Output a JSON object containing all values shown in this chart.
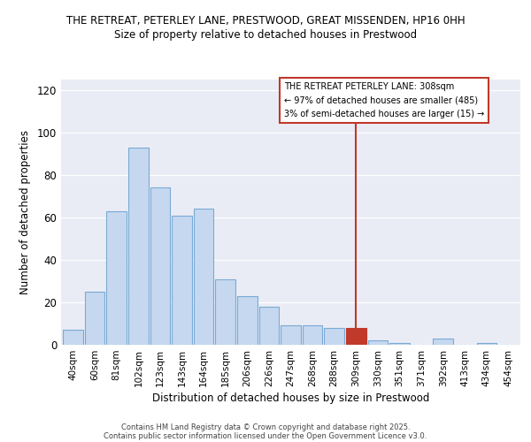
{
  "title_line1": "THE RETREAT, PETERLEY LANE, PRESTWOOD, GREAT MISSENDEN, HP16 0HH",
  "title_line2": "Size of property relative to detached houses in Prestwood",
  "xlabel": "Distribution of detached houses by size in Prestwood",
  "ylabel": "Number of detached properties",
  "categories": [
    "40sqm",
    "60sqm",
    "81sqm",
    "102sqm",
    "123sqm",
    "143sqm",
    "164sqm",
    "185sqm",
    "206sqm",
    "226sqm",
    "247sqm",
    "268sqm",
    "288sqm",
    "309sqm",
    "330sqm",
    "351sqm",
    "371sqm",
    "392sqm",
    "413sqm",
    "434sqm",
    "454sqm"
  ],
  "values": [
    7,
    25,
    63,
    93,
    74,
    61,
    64,
    31,
    23,
    18,
    9,
    9,
    8,
    8,
    2,
    1,
    0,
    3,
    0,
    1,
    0
  ],
  "highlight_index": 13,
  "bar_color_normal_face": "#c5d8f0",
  "bar_color_normal_edge": "#7aaad4",
  "bar_color_highlight_face": "#c0392b",
  "bar_color_highlight_edge": "#c0392b",
  "background_color": "#eaecf5",
  "annotation_text_line1": "THE RETREAT PETERLEY LANE: 308sqm",
  "annotation_text_line2": "← 97% of detached houses are smaller (485)",
  "annotation_text_line3": "3% of semi-detached houses are larger (15) →",
  "annotation_border_color": "#c0392b",
  "ylim": [
    0,
    125
  ],
  "yticks": [
    0,
    20,
    40,
    60,
    80,
    100,
    120
  ],
  "footer_line1": "Contains HM Land Registry data © Crown copyright and database right 2025.",
  "footer_line2": "Contains public sector information licensed under the Open Government Licence v3.0.",
  "vline_x_index": 13
}
